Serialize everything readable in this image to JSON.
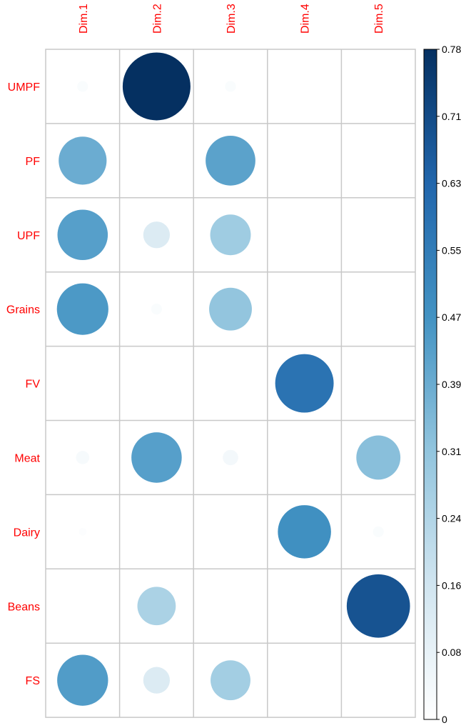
{
  "chart_data": {
    "type": "heatmap",
    "title": "",
    "rows": [
      "UMPF",
      "PF",
      "UPF",
      "Grains",
      "FV",
      "Meat",
      "Dairy",
      "Beans",
      "FS"
    ],
    "columns": [
      "Dim.1",
      "Dim.2",
      "Dim.3",
      "Dim.4",
      "Dim.5"
    ],
    "values": [
      [
        0.02,
        0.78,
        0.02,
        0.0,
        0.0
      ],
      [
        0.39,
        0.0,
        0.42,
        0.0,
        0.0
      ],
      [
        0.43,
        0.12,
        0.28,
        0.0,
        0.0
      ],
      [
        0.45,
        0.02,
        0.31,
        0.0,
        0.0
      ],
      [
        0.0,
        0.0,
        0.0,
        0.58,
        0.0
      ],
      [
        0.03,
        0.43,
        0.04,
        0.0,
        0.33
      ],
      [
        0.01,
        0.0,
        0.0,
        0.48,
        0.02
      ],
      [
        0.0,
        0.25,
        0.0,
        0.0,
        0.68
      ],
      [
        0.44,
        0.12,
        0.27,
        0.0,
        0.0
      ]
    ],
    "colorbar": {
      "min": 0,
      "max": 0.78,
      "ticks": [
        "0.78",
        "0.71",
        "0.63",
        "0.55",
        "0.47",
        "0.39",
        "0.31",
        "0.24",
        "0.16",
        "0.08",
        "0"
      ],
      "colors": [
        "#ffffff",
        "#d1e5f0",
        "#92c5de",
        "#4393c3",
        "#2166ac",
        "#053061"
      ]
    },
    "label_color": "#ff0000",
    "grid_color": "#c8c8c8"
  }
}
